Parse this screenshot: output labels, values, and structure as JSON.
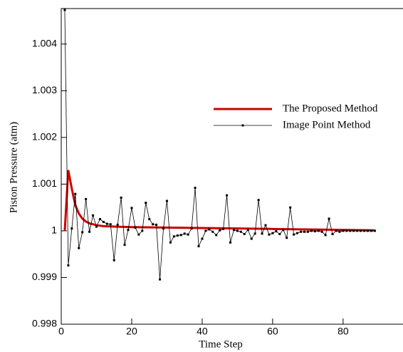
{
  "chart_data": {
    "type": "line",
    "xlabel": "Time Step",
    "ylabel": "Piston Pressure (atm)",
    "xlim": [
      0,
      97
    ],
    "ylim": [
      0.998,
      1.00476
    ],
    "xticks": [
      0,
      20,
      40,
      60,
      80
    ],
    "yticks": [
      0.998,
      0.999,
      1,
      1.001,
      1.002,
      1.003,
      1.004
    ],
    "legend": "upper right",
    "series": [
      {
        "name": "The Proposed Method",
        "color": "#cc0000",
        "marker": false,
        "x": [
          1,
          2,
          3,
          4,
          5,
          6,
          7,
          8,
          10,
          12,
          15,
          20,
          30,
          40,
          50,
          60,
          70,
          80,
          89
        ],
        "values": [
          1.0,
          1.0013,
          1.0009,
          1.00055,
          1.00037,
          1.00026,
          1.0002,
          1.00016,
          1.00012,
          1.0001,
          1.00009,
          1.00008,
          1.00007,
          1.00006,
          1.00005,
          1.00004,
          1.00003,
          1.00002,
          1.00001
        ]
      },
      {
        "name": "Image Point Method",
        "color": "#000000",
        "marker": true,
        "x": [
          1,
          2,
          3,
          4,
          5,
          6,
          7,
          8,
          9,
          10,
          11,
          12,
          13,
          14,
          15,
          16,
          17,
          18,
          19,
          20,
          21,
          22,
          23,
          24,
          25,
          26,
          27,
          28,
          29,
          30,
          31,
          32,
          33,
          34,
          35,
          36,
          37,
          38,
          39,
          40,
          41,
          42,
          43,
          44,
          45,
          46,
          47,
          48,
          49,
          50,
          51,
          52,
          53,
          54,
          55,
          56,
          57,
          58,
          59,
          60,
          61,
          62,
          63,
          64,
          65,
          66,
          67,
          68,
          69,
          70,
          71,
          72,
          73,
          74,
          75,
          76,
          77,
          78,
          79,
          80,
          81,
          82,
          83,
          84,
          85,
          86,
          87,
          88,
          89
        ],
        "values": [
          1.00473,
          0.99926,
          1.00005,
          1.00079,
          0.99963,
          0.99997,
          1.00068,
          0.99998,
          1.00033,
          1.00009,
          1.00025,
          1.00019,
          1.00015,
          1.00014,
          0.99937,
          1.00013,
          1.00071,
          0.9997,
          1.00002,
          1.00049,
          1.00007,
          0.99992,
          1.0,
          1.0006,
          1.00025,
          1.00014,
          1.00013,
          0.99896,
          1.00005,
          1.00064,
          0.99975,
          0.99988,
          0.9999,
          0.99991,
          0.99994,
          0.99992,
          1.00005,
          1.00092,
          0.99967,
          0.99983,
          1.0,
          1.00003,
          0.99998,
          0.99991,
          1.00001,
          1.00004,
          1.00076,
          0.99975,
          1.00002,
          1.0,
          0.99998,
          0.99993,
          1.00002,
          0.99983,
          0.99994,
          1.00066,
          0.99994,
          1.00012,
          0.99992,
          0.99995,
          0.99999,
          0.99993,
          1.00002,
          0.99985,
          1.0005,
          0.99992,
          0.99995,
          0.99998,
          0.99998,
          0.99998,
          1.0,
          0.99999,
          1.0,
          0.99998,
          0.99991,
          1.00026,
          0.99993,
          1.0,
          0.99998,
          1.0,
          1.0,
          1.0,
          1.0,
          1.0,
          1.0,
          1.0,
          1.0,
          1.0,
          1.0
        ]
      }
    ]
  }
}
